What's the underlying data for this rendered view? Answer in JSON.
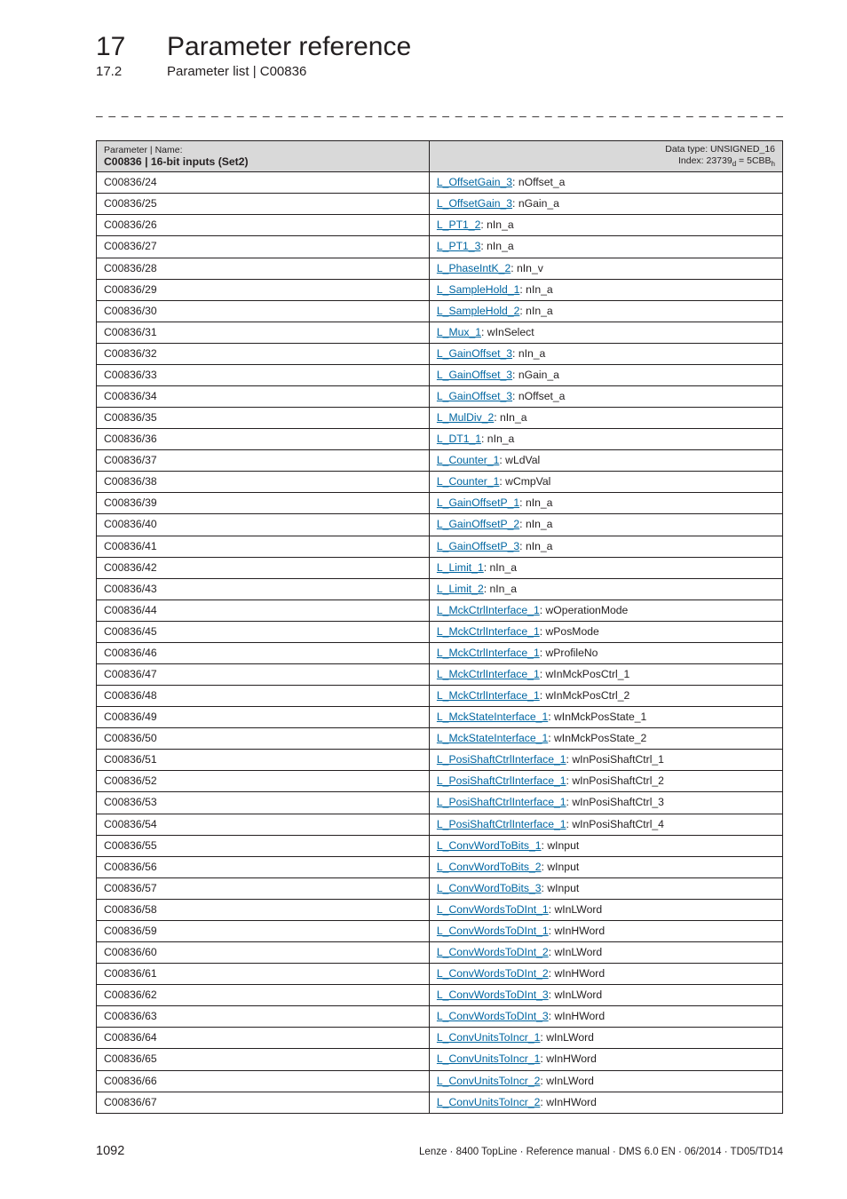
{
  "chapter": {
    "num": "17",
    "title": "Parameter reference"
  },
  "subchapter": {
    "num": "17.2",
    "title": "Parameter list | C00836"
  },
  "separator": "_ _ _ _ _ _ _ _ _ _ _ _ _ _ _ _ _ _ _ _ _ _ _ _ _ _ _ _ _ _ _ _ _ _ _ _ _ _ _ _ _ _ _ _ _ _ _ _ _ _ _ _ _ _ _ _ _ _ _ _ _ _ _ _",
  "table": {
    "header_left_label": "Parameter | Name:",
    "header_left_main": "C00836 | 16-bit inputs (Set2)",
    "header_right_line1": "Data type: UNSIGNED_16",
    "header_right_line2_prefix": "Index: 23739",
    "header_right_line2_sub1": "d",
    "header_right_line2_mid": " = 5CBB",
    "header_right_line2_sub2": "h",
    "rows": [
      {
        "code": "C00836/24",
        "link": "L_OffsetGain_3",
        "suffix": ": nOffset_a"
      },
      {
        "code": "C00836/25",
        "link": "L_OffsetGain_3",
        "suffix": ": nGain_a"
      },
      {
        "code": "C00836/26",
        "link": "L_PT1_2",
        "suffix": ": nIn_a"
      },
      {
        "code": "C00836/27",
        "link": "L_PT1_3",
        "suffix": ": nIn_a"
      },
      {
        "code": "C00836/28",
        "link": "L_PhaseIntK_2",
        "suffix": ": nIn_v"
      },
      {
        "code": "C00836/29",
        "link": "L_SampleHold_1",
        "suffix": ": nIn_a"
      },
      {
        "code": "C00836/30",
        "link": "L_SampleHold_2",
        "suffix": ": nIn_a"
      },
      {
        "code": "C00836/31",
        "link": "L_Mux_1",
        "suffix": ": wInSelect"
      },
      {
        "code": "C00836/32",
        "link": "L_GainOffset_3",
        "suffix": ": nIn_a"
      },
      {
        "code": "C00836/33",
        "link": "L_GainOffset_3",
        "suffix": ": nGain_a"
      },
      {
        "code": "C00836/34",
        "link": "L_GainOffset_3",
        "suffix": ": nOffset_a"
      },
      {
        "code": "C00836/35",
        "link": "L_MulDiv_2",
        "suffix": ": nIn_a"
      },
      {
        "code": "C00836/36",
        "link": "L_DT1_1",
        "suffix": ": nIn_a"
      },
      {
        "code": "C00836/37",
        "link": "L_Counter_1",
        "suffix": ": wLdVal"
      },
      {
        "code": "C00836/38",
        "link": "L_Counter_1",
        "suffix": ": wCmpVal"
      },
      {
        "code": "C00836/39",
        "link": "L_GainOffsetP_1",
        "suffix": ": nIn_a"
      },
      {
        "code": "C00836/40",
        "link": "L_GainOffsetP_2",
        "suffix": ": nIn_a"
      },
      {
        "code": "C00836/41",
        "link": "L_GainOffsetP_3",
        "suffix": ": nIn_a"
      },
      {
        "code": "C00836/42",
        "link": "L_Limit_1",
        "suffix": ": nIn_a"
      },
      {
        "code": "C00836/43",
        "link": "L_Limit_2",
        "suffix": ": nIn_a"
      },
      {
        "code": "C00836/44",
        "link": "L_MckCtrlInterface_1",
        "suffix": ": wOperationMode"
      },
      {
        "code": "C00836/45",
        "link": "L_MckCtrlInterface_1",
        "suffix": ": wPosMode"
      },
      {
        "code": "C00836/46",
        "link": "L_MckCtrlInterface_1",
        "suffix": ": wProfileNo"
      },
      {
        "code": "C00836/47",
        "link": "L_MckCtrlInterface_1",
        "suffix": ": wInMckPosCtrl_1"
      },
      {
        "code": "C00836/48",
        "link": "L_MckCtrlInterface_1",
        "suffix": ": wInMckPosCtrl_2"
      },
      {
        "code": "C00836/49",
        "link": "L_MckStateInterface_1",
        "suffix": ": wInMckPosState_1"
      },
      {
        "code": "C00836/50",
        "link": "L_MckStateInterface_1",
        "suffix": ": wInMckPosState_2"
      },
      {
        "code": "C00836/51",
        "link": "L_PosiShaftCtrlInterface_1",
        "suffix": ": wInPosiShaftCtrl_1"
      },
      {
        "code": "C00836/52",
        "link": "L_PosiShaftCtrlInterface_1",
        "suffix": ": wInPosiShaftCtrl_2"
      },
      {
        "code": "C00836/53",
        "link": "L_PosiShaftCtrlInterface_1",
        "suffix": ": wInPosiShaftCtrl_3"
      },
      {
        "code": "C00836/54",
        "link": "L_PosiShaftCtrlInterface_1",
        "suffix": ": wInPosiShaftCtrl_4"
      },
      {
        "code": "C00836/55",
        "link": "L_ConvWordToBits_1",
        "suffix": ": wInput"
      },
      {
        "code": "C00836/56",
        "link": "L_ConvWordToBits_2",
        "suffix": ": wInput"
      },
      {
        "code": "C00836/57",
        "link": "L_ConvWordToBits_3",
        "suffix": ": wInput"
      },
      {
        "code": "C00836/58",
        "link": "L_ConvWordsToDInt_1",
        "suffix": ": wInLWord"
      },
      {
        "code": "C00836/59",
        "link": "L_ConvWordsToDInt_1",
        "suffix": ": wInHWord"
      },
      {
        "code": "C00836/60",
        "link": "L_ConvWordsToDInt_2",
        "suffix": ": wInLWord"
      },
      {
        "code": "C00836/61",
        "link": "L_ConvWordsToDInt_2",
        "suffix": ": wInHWord"
      },
      {
        "code": "C00836/62",
        "link": "L_ConvWordsToDInt_3",
        "suffix": ": wInLWord"
      },
      {
        "code": "C00836/63",
        "link": "L_ConvWordsToDInt_3",
        "suffix": ": wInHWord"
      },
      {
        "code": "C00836/64",
        "link": "L_ConvUnitsToIncr_1",
        "suffix": ": wInLWord"
      },
      {
        "code": "C00836/65",
        "link": "L_ConvUnitsToIncr_1",
        "suffix": ": wInHWord"
      },
      {
        "code": "C00836/66",
        "link": "L_ConvUnitsToIncr_2",
        "suffix": ": wInLWord"
      },
      {
        "code": "C00836/67",
        "link": "L_ConvUnitsToIncr_2",
        "suffix": ": wInHWord"
      }
    ]
  },
  "footer": {
    "page": "1092",
    "info": "Lenze · 8400 TopLine · Reference manual · DMS 6.0 EN · 06/2014 · TD05/TD14"
  }
}
